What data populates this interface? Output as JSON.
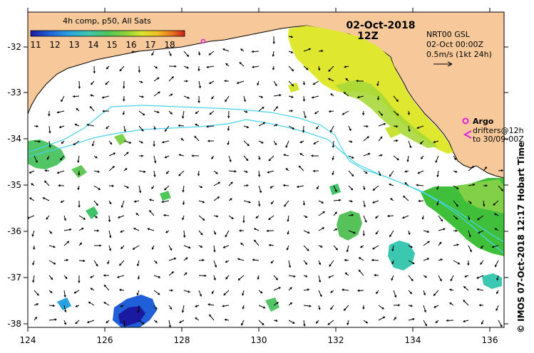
{
  "legend": {
    "title": "4h comp, p50, All Sats",
    "ticks": [
      "11",
      "12",
      "13",
      "14",
      "15",
      "16",
      "17",
      "18"
    ],
    "colors": [
      "#1a1aa0",
      "#1f5fd8",
      "#2aa2e0",
      "#3cc7b0",
      "#4ec65a",
      "#8fd23a",
      "#d8e62a",
      "#f1c026",
      "#ec7a1e",
      "#c9221a"
    ]
  },
  "date": {
    "line1": "02-Oct-2018",
    "line2": "12Z"
  },
  "current_info": {
    "line1": "NRT00 GSL",
    "line2": "02-Oct 00:00Z",
    "line3": "0.5m/s (1kt 24h)"
  },
  "argo": {
    "label": "Argo",
    "drifters_line1": "drifters@12h",
    "drifters_line2": "to 30/09-00Z"
  },
  "credit": "© IMOS 07-Oct-2018 12:17 Hobart Time",
  "x_axis": {
    "ticks": [
      "124",
      "126",
      "128",
      "130",
      "132",
      "134",
      "136"
    ]
  },
  "y_axis": {
    "ticks": [
      "-32",
      "-33",
      "-34",
      "-35",
      "-36",
      "-37",
      "-38"
    ]
  },
  "colors": {
    "land": "#f7c99a",
    "ocean": "#ffffff",
    "isobath": "#48d4ec",
    "argo": "#e020e0"
  }
}
